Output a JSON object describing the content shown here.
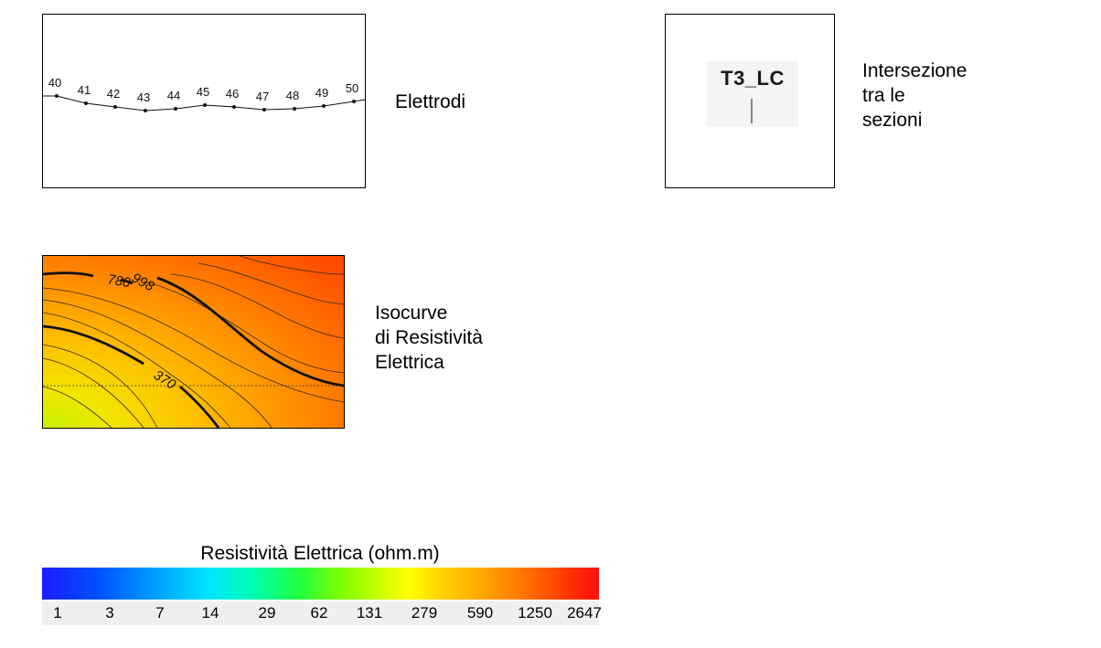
{
  "electrodes": {
    "caption": "Elettrodi",
    "labels": [
      "40",
      "41",
      "42",
      "43",
      "44",
      "45",
      "46",
      "47",
      "48",
      "49",
      "50"
    ]
  },
  "intersection": {
    "label": "T3_LC",
    "caption_lines": [
      "Intersezione",
      "tra le",
      "sezioni"
    ]
  },
  "isocurves": {
    "caption_lines": [
      "Isocurve",
      "di Resistività",
      "Elettrica"
    ],
    "contour_labels": [
      "780",
      "998",
      "370"
    ]
  },
  "colorbar": {
    "title": "Resistività Elettrica (ohm.m)",
    "tick_labels": [
      "1",
      "3",
      "7",
      "14",
      "29",
      "62",
      "131",
      "279",
      "590",
      "1250",
      "2647"
    ],
    "colors": [
      "#1c1cff",
      "#00e6ff",
      "#20ff40",
      "#ffff00",
      "#ffa000",
      "#ff1010"
    ]
  }
}
